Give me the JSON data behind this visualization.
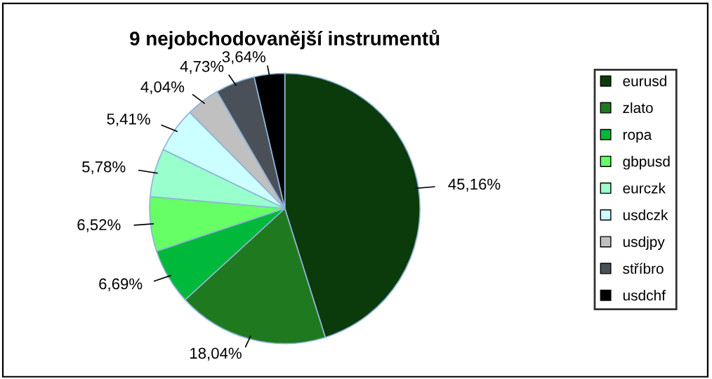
{
  "chart_data": {
    "type": "pie",
    "title": "9 nejobchodovanější instrumentů",
    "categories": [
      "eurusd",
      "zlato",
      "ropa",
      "gbpusd",
      "eurczk",
      "usdczk",
      "usdjpy",
      "stříbro",
      "usdchf"
    ],
    "values": [
      45.16,
      18.04,
      6.69,
      6.52,
      5.78,
      5.41,
      4.04,
      4.73,
      3.64
    ],
    "value_labels": [
      "45,16%",
      "18,04%",
      "6,69%",
      "6,52%",
      "5,78%",
      "5,41%",
      "4,04%",
      "4,73%",
      "3,64%"
    ],
    "colors": [
      "#0b3b0b",
      "#1f7a1f",
      "#00b83a",
      "#66ff66",
      "#99ffcc",
      "#ccffff",
      "#c0c0c0",
      "#4a5058",
      "#000000"
    ],
    "legend": "right"
  }
}
